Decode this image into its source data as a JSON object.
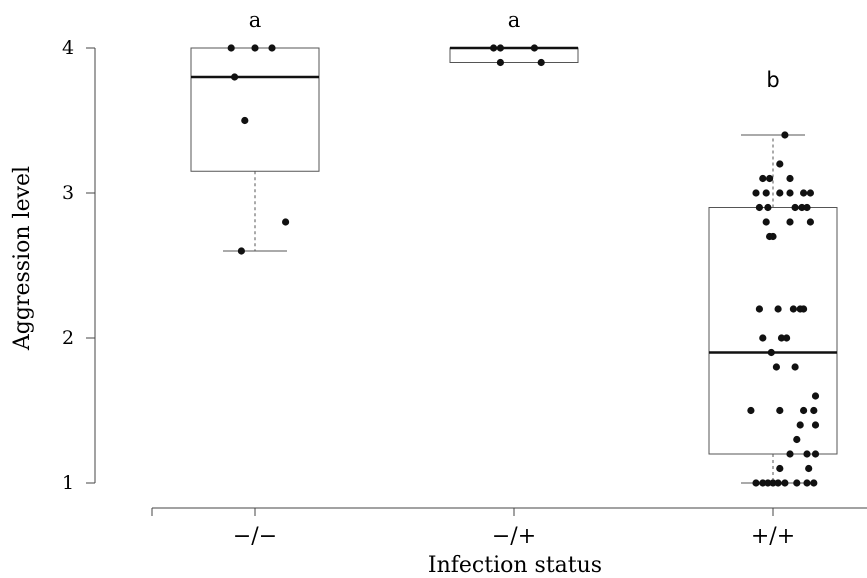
{
  "chart_data": {
    "type": "box",
    "xlabel": "Infection status",
    "ylabel": "Aggression level",
    "ylim": [
      1,
      4
    ],
    "yticks": [
      1,
      2,
      3,
      4
    ],
    "grid": false,
    "categories": [
      "−/−",
      "−/+",
      "+/+"
    ],
    "groups": [
      {
        "category": "−/−",
        "letter": "a",
        "box": {
          "whisker_low": 2.6,
          "q1": 3.15,
          "median": 3.8,
          "q3": 4.0,
          "whisker_high": 4.0
        },
        "points": [
          [
            -0.14,
            4.0
          ],
          [
            0.0,
            4.0
          ],
          [
            0.1,
            4.0
          ],
          [
            -0.12,
            3.8
          ],
          [
            -0.06,
            3.5
          ],
          [
            0.18,
            2.8
          ],
          [
            -0.08,
            2.6
          ]
        ]
      },
      {
        "category": "−/+",
        "letter": "a",
        "box": {
          "whisker_low": 3.9,
          "q1": 3.9,
          "median": 4.0,
          "q3": 4.0,
          "whisker_high": 4.0
        },
        "points": [
          [
            -0.12,
            4.0
          ],
          [
            -0.08,
            4.0
          ],
          [
            0.12,
            4.0
          ],
          [
            -0.08,
            3.9
          ],
          [
            0.16,
            3.9
          ]
        ]
      },
      {
        "category": "+/+",
        "letter": "b",
        "box": {
          "whisker_low": 1.0,
          "q1": 1.2,
          "median": 1.9,
          "q3": 2.9,
          "whisker_high": 3.4
        },
        "points": [
          [
            0.07,
            3.4
          ],
          [
            0.04,
            3.2
          ],
          [
            -0.06,
            3.1
          ],
          [
            -0.02,
            3.1
          ],
          [
            0.1,
            3.1
          ],
          [
            -0.1,
            3.0
          ],
          [
            -0.04,
            3.0
          ],
          [
            0.04,
            3.0
          ],
          [
            0.1,
            3.0
          ],
          [
            0.18,
            3.0
          ],
          [
            0.22,
            3.0
          ],
          [
            -0.08,
            2.9
          ],
          [
            -0.03,
            2.9
          ],
          [
            0.13,
            2.9
          ],
          [
            0.17,
            2.9
          ],
          [
            0.2,
            2.9
          ],
          [
            -0.04,
            2.8
          ],
          [
            0.1,
            2.8
          ],
          [
            0.22,
            2.8
          ],
          [
            -0.02,
            2.7
          ],
          [
            0.0,
            2.7
          ],
          [
            -0.08,
            2.2
          ],
          [
            0.03,
            2.2
          ],
          [
            0.12,
            2.2
          ],
          [
            0.16,
            2.2
          ],
          [
            0.18,
            2.2
          ],
          [
            -0.06,
            2.0
          ],
          [
            0.05,
            2.0
          ],
          [
            0.08,
            2.0
          ],
          [
            -0.01,
            1.9
          ],
          [
            0.02,
            1.8
          ],
          [
            0.13,
            1.8
          ],
          [
            0.25,
            1.6
          ],
          [
            -0.13,
            1.5
          ],
          [
            0.04,
            1.5
          ],
          [
            0.18,
            1.5
          ],
          [
            0.24,
            1.5
          ],
          [
            0.16,
            1.4
          ],
          [
            0.25,
            1.4
          ],
          [
            0.14,
            1.3
          ],
          [
            0.1,
            1.2
          ],
          [
            0.2,
            1.2
          ],
          [
            0.25,
            1.2
          ],
          [
            0.04,
            1.1
          ],
          [
            0.21,
            1.1
          ],
          [
            -0.1,
            1.0
          ],
          [
            -0.06,
            1.0
          ],
          [
            -0.03,
            1.0
          ],
          [
            0.0,
            1.0
          ],
          [
            0.03,
            1.0
          ],
          [
            0.07,
            1.0
          ],
          [
            0.14,
            1.0
          ],
          [
            0.2,
            1.0
          ],
          [
            0.24,
            1.0
          ]
        ]
      }
    ]
  }
}
